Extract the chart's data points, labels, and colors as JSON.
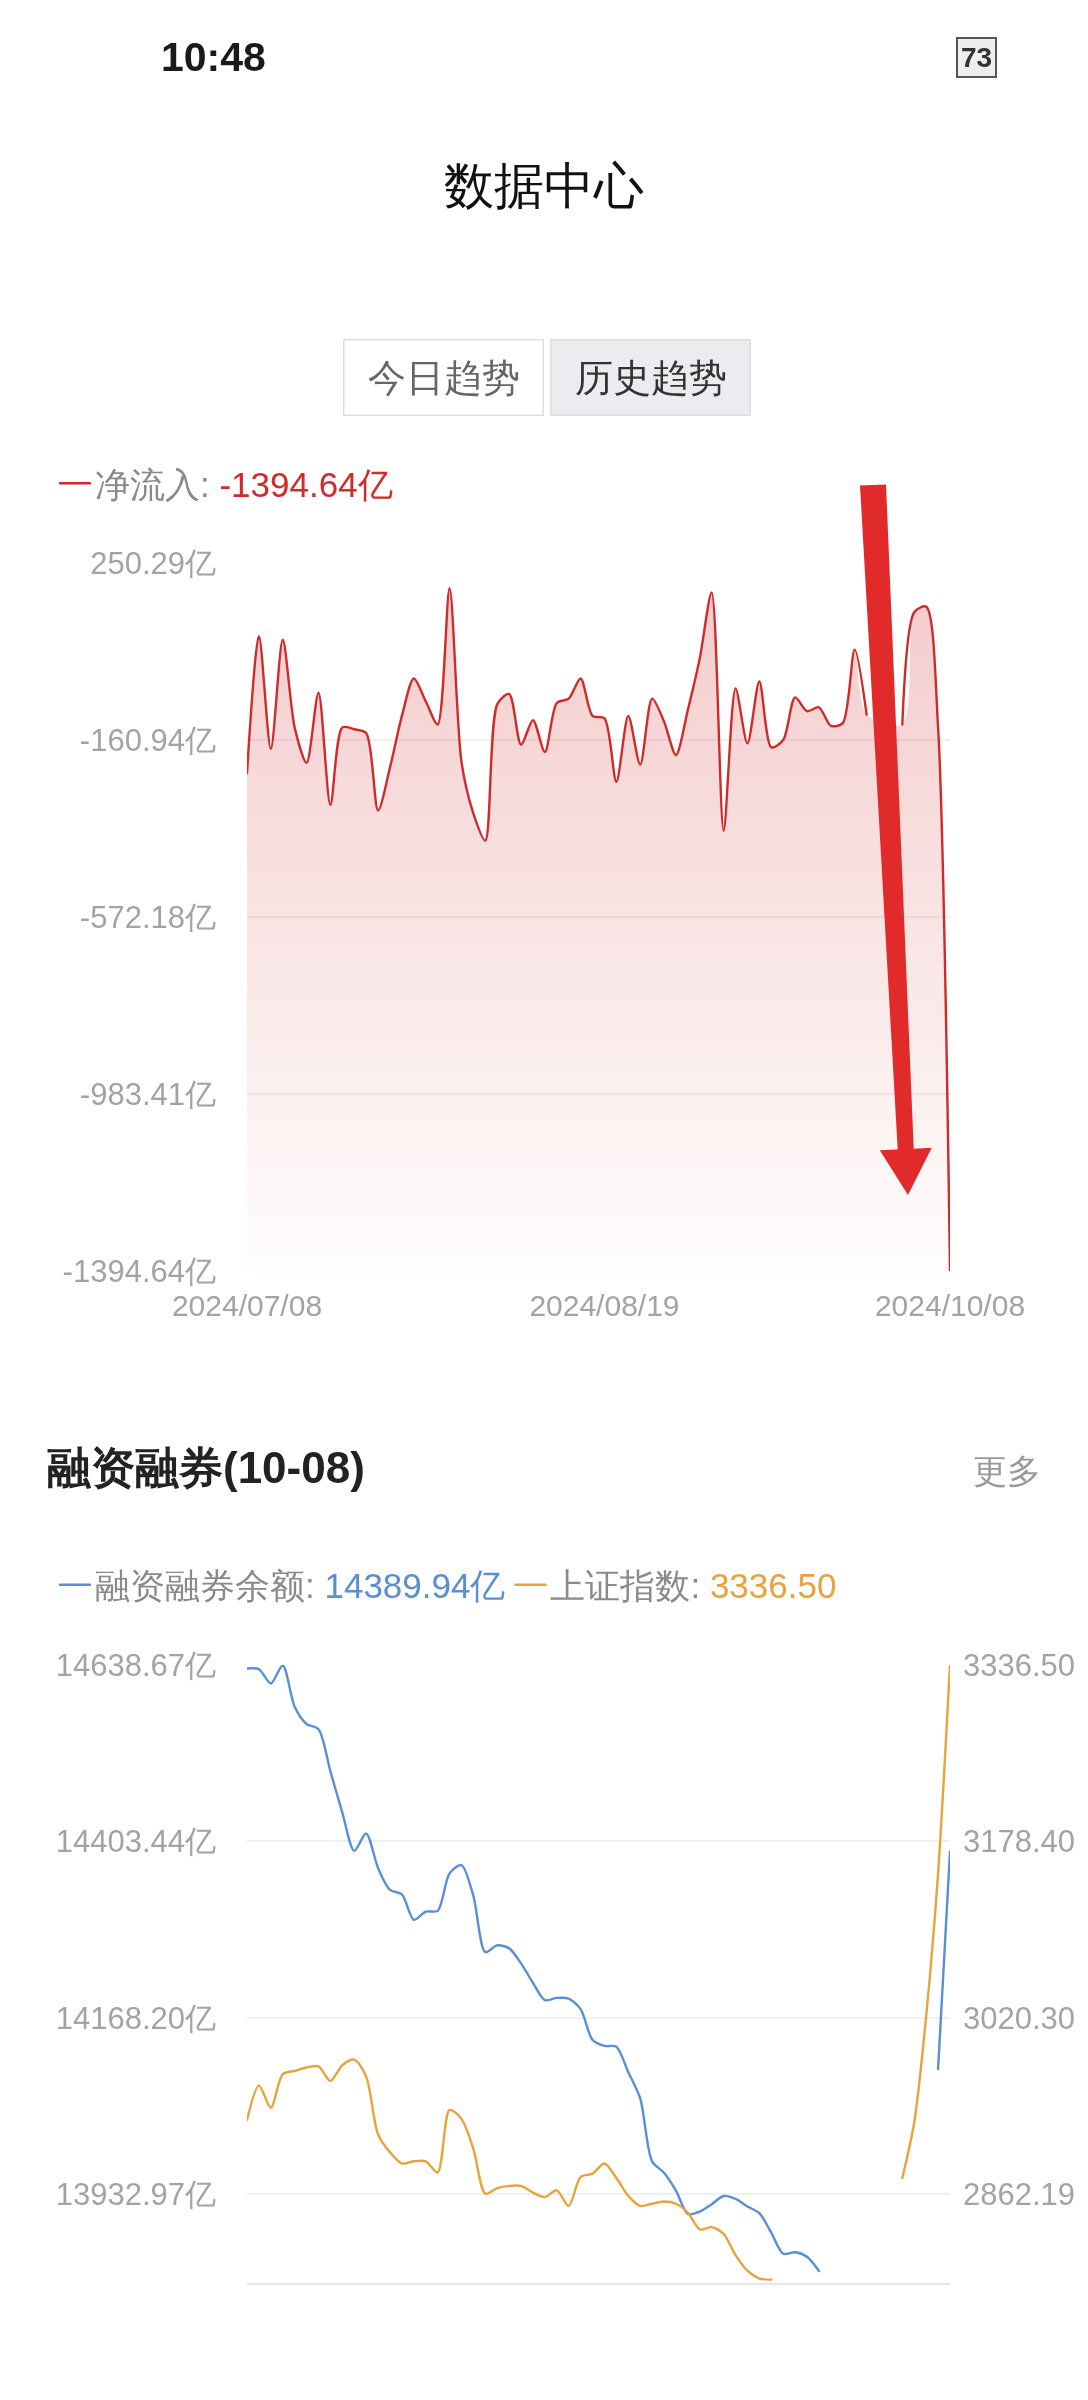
{
  "chart_data": [
    {
      "type": "line",
      "title": "数据中心",
      "annotations": [
        "-1394.64亿",
        "10:48",
        "73",
        "今日趋势",
        "历史趋势"
      ],
      "categories": [
        "2024/07/08",
        null,
        null,
        null,
        null,
        null,
        null,
        null,
        null,
        null,
        null,
        null,
        null,
        null,
        null,
        null,
        null,
        null,
        null,
        null,
        null,
        null,
        null,
        null,
        null,
        null,
        null,
        null,
        null,
        null,
        "2024/08/19",
        null,
        null,
        null,
        null,
        null,
        null,
        null,
        null,
        null,
        null,
        null,
        null,
        null,
        null,
        null,
        null,
        null,
        null,
        null,
        null,
        null,
        null,
        null,
        null,
        null,
        null,
        null,
        null,
        "2024/10/08"
      ],
      "series": [
        {
          "name": "净流入:",
          "color": "#d12a2a",
          "values": [
            -237,
            81,
            -181,
            73,
            -131,
            -213,
            -50,
            -311,
            -131,
            -135,
            -144,
            -324,
            -224,
            -104,
            -17,
            -70,
            -124,
            193,
            -211,
            -331,
            -394,
            -77,
            -53,
            -171,
            -114,
            -188,
            -74,
            -64,
            -17,
            -104,
            -110,
            -257,
            -104,
            -217,
            -64,
            -117,
            -195,
            -90,
            30,
            183,
            -371,
            -40,
            -168,
            -24,
            -177,
            -160,
            -61,
            -93,
            -84,
            -127,
            -121,
            50,
            -101,
            null,
            null,
            -124,
            137,
            150,
            -131,
            -1394.64
          ],
          "upper": [
            -237,
            81,
            -181,
            73,
            -131,
            -213,
            -50,
            -311,
            -131,
            -135,
            -144,
            -324,
            -224,
            -104,
            -17,
            -70,
            -124,
            193,
            -211,
            -331,
            -394,
            -77,
            -53,
            -171,
            -114,
            -188,
            -74,
            -64,
            -17,
            -104,
            -110,
            -257,
            -104,
            -217,
            -64,
            -117,
            -195,
            -90,
            30,
            183,
            -371,
            -40,
            -168,
            -24,
            -177,
            -160,
            -61,
            -93,
            -84,
            -127,
            -121,
            50,
            -101,
            null,
            null,
            -124,
            137,
            150,
            -131,
            -1394.64
          ],
          "lower": [
            -1394.64,
            -1394.64,
            -1394.64,
            -1394.64,
            -1394.64,
            -1394.64,
            -1394.64,
            -1394.64,
            -1394.64,
            -1394.64,
            -1394.64,
            -1394.64,
            -1394.64,
            -1394.64,
            -1394.64,
            -1394.64,
            -1394.64,
            -1394.64,
            -1394.64,
            -1394.64,
            -1394.64,
            -1394.64,
            -1394.64,
            -1394.64,
            -1394.64,
            -1394.64,
            -1394.64,
            -1394.64,
            -1394.64,
            -1394.64,
            -1394.64,
            -1394.64,
            -1394.64,
            -1394.64,
            -1394.64,
            -1394.64,
            -1394.64,
            -1394.64,
            -1394.64,
            -1394.64,
            -1394.64,
            -1394.64,
            -1394.64,
            -1394.64,
            -1394.64,
            -1394.64,
            -1394.64,
            -1394.64,
            -1394.64,
            -1394.64,
            -1394.64,
            -1394.64,
            -1394.64,
            null,
            null,
            -1394.64,
            -1394.64,
            -1394.64,
            -1394.64,
            -1394.64
          ]
        }
      ],
      "ylim": [
        -1394.64,
        250.29
      ],
      "yticks": [
        {
          "value": 250.29,
          "label": "250.29亿"
        },
        {
          "value": -160.94,
          "label": "-160.94亿"
        },
        {
          "value": -572.18,
          "label": "-572.18亿"
        },
        {
          "value": -983.41,
          "label": "-983.41亿"
        },
        {
          "value": -1394.64,
          "label": "-1394.64亿"
        }
      ],
      "grid": "y",
      "legend": "top left",
      "line_style": "solid"
    },
    {
      "type": "line",
      "title": "融资融券(10-08)",
      "annotations": [
        "14389.94亿",
        "3336.50",
        "更多"
      ],
      "categories": [
        null,
        null,
        null,
        null,
        null,
        null,
        null,
        null,
        null,
        null,
        null,
        null,
        null,
        null,
        null,
        null,
        null,
        null,
        null,
        null,
        null,
        null,
        null,
        null,
        null,
        null,
        null,
        null,
        null,
        null,
        null,
        null,
        null,
        null,
        null,
        null,
        null,
        null,
        null,
        null,
        null,
        null,
        null,
        null,
        null,
        null,
        null,
        null,
        null,
        null,
        null,
        null,
        null,
        null,
        null,
        null,
        null,
        null,
        null,
        null
      ],
      "series": [
        {
          "name": "融资融券余额:",
          "color": "#5a8fd2",
          "values": [
            14634,
            14633,
            14614,
            14638,
            14583,
            14560,
            14553,
            14497,
            14442,
            14391,
            14414,
            14368,
            14339,
            14333,
            14299,
            14310,
            14311,
            14361,
            14372,
            14331,
            14256,
            14265,
            14261,
            14241,
            14215,
            14192,
            14195,
            14194,
            14180,
            14139,
            14131,
            14130,
            14096,
            14061,
            13977,
            13962,
            13938,
            13907,
            13910,
            13920,
            13931,
            13927,
            13917,
            13908,
            13882,
            13854,
            13856,
            13850,
            13831,
            null,
            null,
            null,
            null,
            null,
            null,
            null,
            null,
            null,
            14100,
            14389.94
          ]
        },
        {
          "name": "上证指数:",
          "color": "#e8a33c",
          "axis": "y2",
          "values": [
            2929,
            2960,
            2940,
            2970,
            2973,
            2976,
            2977,
            2964,
            2978,
            2983,
            2968,
            2916,
            2900,
            2890,
            2892,
            2892,
            2882,
            2938,
            2930,
            2903,
            2863,
            2868,
            2870,
            2870,
            2864,
            2860,
            2866,
            2852,
            2878,
            2881,
            2890,
            2877,
            2861,
            2852,
            2854,
            2856,
            2854,
            2846,
            2831,
            2833,
            2827,
            2808,
            2794,
            2787,
            2786,
            null,
            null,
            null,
            null,
            null,
            null,
            null,
            null,
            null,
            null,
            2877,
            2927,
            3022,
            3150,
            3336.5
          ]
        }
      ],
      "ylim": [
        13815,
        14638.67
      ],
      "yticks": [
        {
          "value": 14638.67,
          "label": "14638.67亿"
        },
        {
          "value": 14403.44,
          "label": "14403.44亿"
        },
        {
          "value": 14168.2,
          "label": "14168.20亿"
        },
        {
          "value": 13932.97,
          "label": "13932.97亿"
        }
      ],
      "y2lim": [
        2783,
        3336.5
      ],
      "y2ticks": [
        {
          "value": 3336.5,
          "label": "3336.50"
        },
        {
          "value": 3178.4,
          "label": "3178.40"
        },
        {
          "value": 3020.3,
          "label": "3020.30"
        },
        {
          "value": 2862.19,
          "label": "2862.19"
        }
      ],
      "grid": "y",
      "legend": "top left",
      "line_style": "solid"
    }
  ]
}
